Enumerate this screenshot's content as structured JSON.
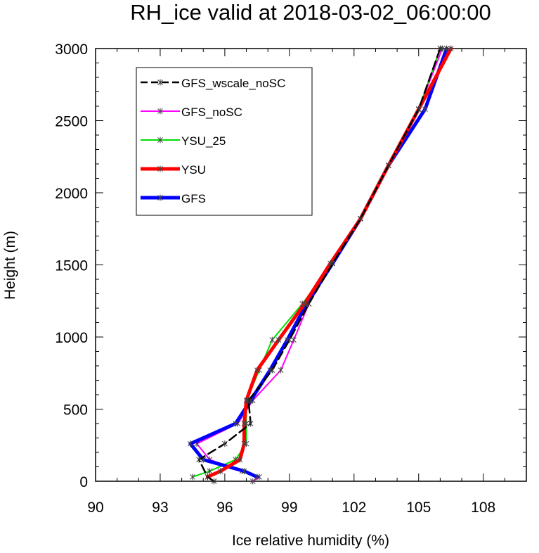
{
  "chart_data": {
    "type": "line",
    "title": "RH_ice valid at 2018-03-02_06:00:00",
    "xlabel": "Ice relative humidity (%)",
    "ylabel": "Height (m)",
    "xlim": [
      90,
      110
    ],
    "ylim": [
      0,
      3000
    ],
    "xticks": [
      90,
      93,
      96,
      99,
      102,
      105,
      108
    ],
    "xtick_labels": [
      "90",
      "93",
      "96",
      "99",
      "102",
      "105",
      "108"
    ],
    "yticks": [
      0,
      500,
      1000,
      1500,
      2000,
      2500,
      3000
    ],
    "ytick_labels": [
      "0",
      "500",
      "1000",
      "1500",
      "2000",
      "2500",
      "3000"
    ],
    "grid": false,
    "legend_position": "top-left",
    "series": [
      {
        "name": "GFS_wscale_noSC",
        "color": "#000000",
        "style": "dashed",
        "points": [
          [
            95.5,
            0
          ],
          [
            95.2,
            30
          ],
          [
            94.8,
            150
          ],
          [
            96.0,
            260
          ],
          [
            97.2,
            400
          ],
          [
            97.1,
            560
          ],
          [
            98.2,
            770
          ],
          [
            99.0,
            980
          ],
          [
            99.9,
            1230
          ],
          [
            101.0,
            1510
          ],
          [
            102.3,
            1820
          ],
          [
            103.6,
            2190
          ],
          [
            105.0,
            2580
          ],
          [
            106.0,
            3000
          ]
        ]
      },
      {
        "name": "GFS_noSC",
        "color": "#ff00ff",
        "style": "solid",
        "points": [
          [
            97.3,
            0
          ],
          [
            97.6,
            30
          ],
          [
            96.8,
            70
          ],
          [
            95.3,
            150
          ],
          [
            94.7,
            260
          ],
          [
            96.6,
            400
          ],
          [
            97.3,
            560
          ],
          [
            98.6,
            770
          ],
          [
            99.2,
            980
          ],
          [
            99.9,
            1230
          ],
          [
            101.0,
            1510
          ],
          [
            102.3,
            1820
          ],
          [
            103.6,
            2190
          ],
          [
            105.0,
            2580
          ],
          [
            106.1,
            3000
          ]
        ]
      },
      {
        "name": "YSU_25",
        "color": "#00dd00",
        "style": "solid",
        "points": [
          [
            94.5,
            30
          ],
          [
            95.3,
            70
          ],
          [
            96.5,
            150
          ],
          [
            97.0,
            260
          ],
          [
            97.0,
            400
          ],
          [
            97.0,
            560
          ],
          [
            97.6,
            770
          ],
          [
            98.2,
            980
          ],
          [
            99.6,
            1230
          ],
          [
            101.0,
            1510
          ],
          [
            102.3,
            1820
          ],
          [
            103.6,
            2190
          ],
          [
            105.0,
            2580
          ],
          [
            106.0,
            3000
          ]
        ]
      },
      {
        "name": "YSU",
        "color": "#ff0000",
        "style": "solid",
        "points": [
          [
            95.2,
            30
          ],
          [
            95.8,
            70
          ],
          [
            96.7,
            150
          ],
          [
            96.9,
            260
          ],
          [
            96.9,
            400
          ],
          [
            97.0,
            560
          ],
          [
            97.5,
            770
          ],
          [
            98.5,
            980
          ],
          [
            99.7,
            1230
          ],
          [
            100.9,
            1510
          ],
          [
            102.3,
            1820
          ],
          [
            103.6,
            2190
          ],
          [
            105.0,
            2580
          ],
          [
            106.5,
            3000
          ]
        ]
      },
      {
        "name": "GFS",
        "color": "#0000ff",
        "style": "solid",
        "points": [
          [
            97.5,
            30
          ],
          [
            96.9,
            70
          ],
          [
            95.0,
            150
          ],
          [
            94.4,
            260
          ],
          [
            96.5,
            400
          ],
          [
            97.2,
            560
          ],
          [
            98.1,
            770
          ],
          [
            98.9,
            980
          ],
          [
            99.8,
            1230
          ],
          [
            101.0,
            1510
          ],
          [
            102.3,
            1820
          ],
          [
            103.6,
            2190
          ],
          [
            105.3,
            2580
          ],
          [
            106.3,
            3000
          ]
        ]
      }
    ]
  }
}
